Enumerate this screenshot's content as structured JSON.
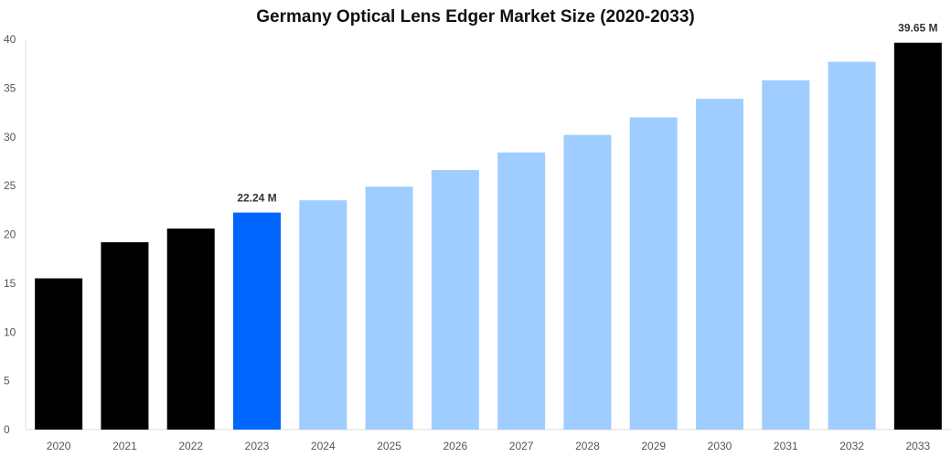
{
  "chart_data": {
    "type": "bar",
    "title": "Germany Optical Lens Edger Market Size (2020-2033)",
    "xlabel": "",
    "ylabel": "",
    "ylim": [
      0,
      40
    ],
    "yticks": [
      0,
      5,
      10,
      15,
      20,
      25,
      30,
      35,
      40
    ],
    "grid": false,
    "categories": [
      "2020",
      "2021",
      "2022",
      "2023",
      "2024",
      "2025",
      "2026",
      "2027",
      "2028",
      "2029",
      "2030",
      "2031",
      "2032",
      "2033"
    ],
    "values": [
      15.5,
      19.2,
      20.6,
      22.24,
      23.5,
      24.9,
      26.6,
      28.4,
      30.2,
      32.0,
      33.9,
      35.8,
      37.7,
      39.65
    ],
    "colors": [
      "#000000",
      "#000000",
      "#000000",
      "#0066ff",
      "#a0cdff",
      "#a0cdff",
      "#a0cdff",
      "#a0cdff",
      "#a0cdff",
      "#a0cdff",
      "#a0cdff",
      "#a0cdff",
      "#a0cdff",
      "#000000"
    ],
    "data_labels": [
      {
        "index": 3,
        "text": "22.24 M"
      },
      {
        "index": 13,
        "text": "39.65 M"
      }
    ]
  }
}
